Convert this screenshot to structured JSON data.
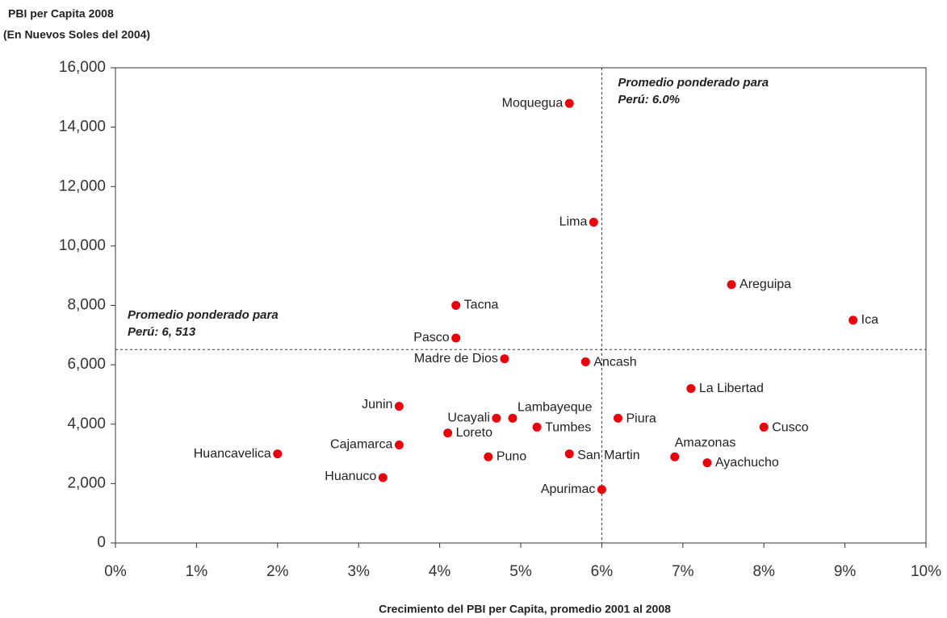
{
  "chart_data": {
    "type": "scatter",
    "y_axis_label": [
      "PBI per Capita 2008",
      "(En Nuevos Soles del 2004)"
    ],
    "x_axis_label": "Crecimiento del PBI per Capita, promedio 2001 al 2008",
    "color": "#e8000d",
    "xlim": [
      0,
      10
    ],
    "ylim": [
      0,
      16000
    ],
    "xticks": [
      {
        "value": 0,
        "label": "0%"
      },
      {
        "value": 1,
        "label": "1%"
      },
      {
        "value": 2,
        "label": "2%"
      },
      {
        "value": 3,
        "label": "3%"
      },
      {
        "value": 4,
        "label": "4%"
      },
      {
        "value": 5,
        "label": "5%"
      },
      {
        "value": 6,
        "label": "6%"
      },
      {
        "value": 7,
        "label": "7%"
      },
      {
        "value": 8,
        "label": "8%"
      },
      {
        "value": 9,
        "label": "9%"
      },
      {
        "value": 10,
        "label": "10%"
      }
    ],
    "yticks": [
      0,
      {
        "value": 2000,
        "label": "2,000"
      },
      {
        "value": 4000,
        "label": "4,000"
      },
      {
        "value": 6000,
        "label": "6,000"
      },
      {
        "value": 8000,
        "label": "8,000"
      },
      {
        "value": 10000,
        "label": "10,000"
      },
      {
        "value": 12000,
        "label": "12,000"
      },
      {
        "value": 14000,
        "label": "14,000"
      },
      {
        "value": 16000,
        "label": "16,000"
      }
    ],
    "labels": [
      "Moquegua",
      "Lima",
      "Areguipa",
      "Ica",
      "Tacna",
      "Pasco",
      "Madre de Dios",
      "Ancash",
      "La Libertad",
      "Junin",
      "Ucayali",
      "Lambayeque",
      "Piura",
      "Tumbes",
      "Cusco",
      "Loreto",
      "Cajamarca",
      "Huancavelica",
      "San Martin",
      "Puno",
      "Amazonas",
      "Ayachucho",
      "Huanuco",
      "Apurimac"
    ],
    "x": [
      5.6,
      5.9,
      7.6,
      9.1,
      4.2,
      4.2,
      4.8,
      5.8,
      7.1,
      3.5,
      4.7,
      4.9,
      6.2,
      5.2,
      8.0,
      4.1,
      3.5,
      2.0,
      5.6,
      4.6,
      6.9,
      7.3,
      3.3,
      6.0
    ],
    "values": [
      14800,
      10800,
      8700,
      7500,
      8000,
      6900,
      6200,
      6100,
      5200,
      4600,
      4200,
      4200,
      4200,
      3900,
      3900,
      3700,
      3300,
      3000,
      3000,
      2900,
      2900,
      2700,
      2200,
      1800
    ],
    "reference_lines": [
      {
        "axis": "x",
        "value": 6.0,
        "label": [
          "Promedio ponderado para",
          "Perú: 6.0%"
        ]
      },
      {
        "axis": "y",
        "value": 6513,
        "label": [
          "Promedio ponderado para",
          "Perú: 6, 513"
        ]
      }
    ]
  }
}
